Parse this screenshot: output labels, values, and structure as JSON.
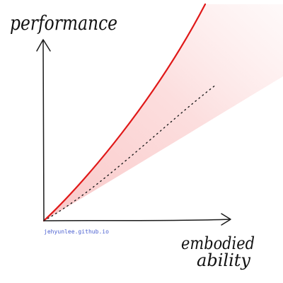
{
  "labels": {
    "y_axis": "performance",
    "x_axis_line1": "embodied",
    "x_axis_line2": "ability",
    "credit": "jehyunlee.github.io"
  },
  "colors": {
    "upper_line": "#e01818",
    "shaded_region": "#fbd3d3",
    "axes": "#1a1a1a",
    "lower_line": "#1a1a1a",
    "credit_text": "#4a5fd0"
  },
  "icons": {
    "y_arrow": "arrow-up-icon",
    "x_arrow": "arrow-right-icon"
  }
}
